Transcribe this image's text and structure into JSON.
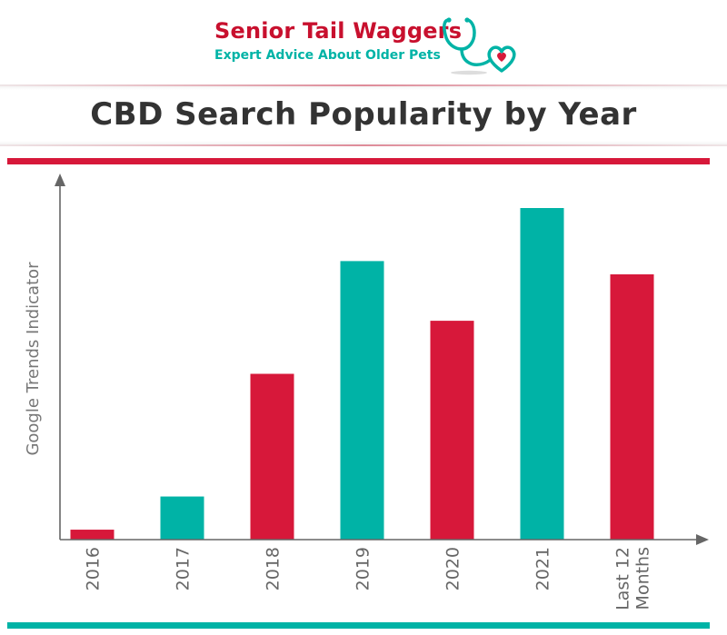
{
  "brand": {
    "name": "Senior Tail Waggers",
    "tagline": "Expert Advice About Older Pets"
  },
  "colors": {
    "red": "#d7183a",
    "teal": "#00b3a6",
    "axis": "#666666",
    "title": "#333333"
  },
  "chart_data": {
    "type": "bar",
    "title": "CBD Search Popularity by Year",
    "xlabel": "",
    "ylabel": "Google Trends Indicator",
    "categories": [
      "2016",
      "2017",
      "2018",
      "2019",
      "2020",
      "2021",
      "Last 12 Months"
    ],
    "values": [
      3,
      13,
      50,
      84,
      66,
      100,
      80
    ],
    "bar_colors": [
      "#d7183a",
      "#00b3a6",
      "#d7183a",
      "#00b3a6",
      "#d7183a",
      "#00b3a6",
      "#d7183a"
    ],
    "ylim": [
      0,
      100
    ],
    "grid": false,
    "legend": "none"
  }
}
